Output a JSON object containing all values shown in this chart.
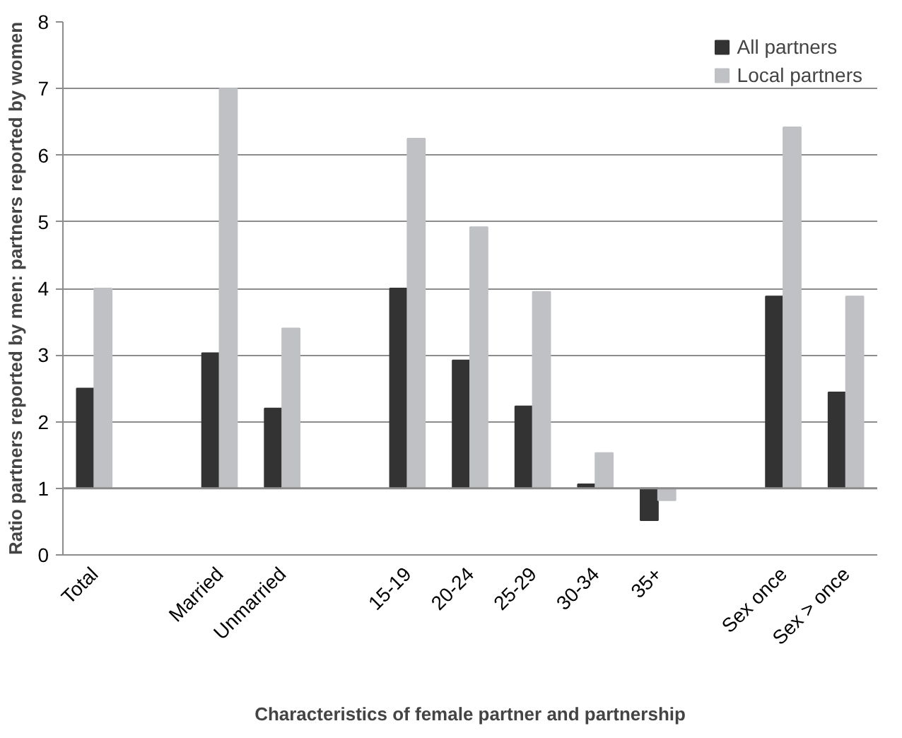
{
  "chart_data": {
    "type": "bar",
    "xlabel": "Characteristics of female partner and partnership",
    "ylabel": "Ratio partners reported by men: partners reported by women",
    "categories": [
      "Total",
      null,
      "Married",
      "Unmarried",
      null,
      "15-19",
      "20-24",
      "25-29",
      "30-34",
      "35+",
      null,
      "Sex once",
      "Sex > once"
    ],
    "ref_lines": [
      {
        "axis": "y",
        "value": 1,
        "color": "#8c8c8c"
      }
    ],
    "series": [
      {
        "name": "All partners",
        "color": "#333333",
        "base": [
          1,
          null,
          1,
          1,
          null,
          1,
          1,
          1,
          1,
          1,
          null,
          1,
          1
        ],
        "values": [
          1.5,
          null,
          2.03,
          1.2,
          null,
          3.0,
          1.92,
          1.23,
          0.06,
          -0.48,
          null,
          2.88,
          1.44
        ]
      },
      {
        "name": "Local partners",
        "color": "#c0c1c4",
        "base": [
          1,
          null,
          1,
          1,
          null,
          1,
          1,
          1,
          1,
          1,
          null,
          1,
          1
        ],
        "values": [
          3.0,
          null,
          6.0,
          2.4,
          null,
          5.25,
          3.92,
          2.95,
          0.53,
          -0.18,
          null,
          5.42,
          2.88
        ]
      }
    ],
    "ylim": [
      0,
      8
    ],
    "yticks": [
      0,
      1,
      2,
      3,
      4,
      5,
      6,
      7,
      8
    ],
    "grid": "y",
    "legend": "top right"
  }
}
